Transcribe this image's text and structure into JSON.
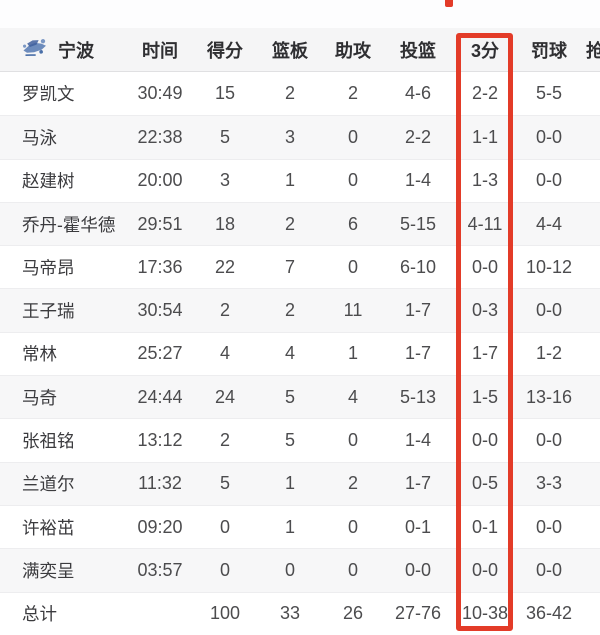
{
  "team": {
    "name": "宁波"
  },
  "header": {
    "columns": [
      "时间",
      "得分",
      "篮板",
      "助攻",
      "投篮",
      "3分",
      "罚球",
      "抢断"
    ]
  },
  "highlight": {
    "column_label": "3分",
    "box_color": "#e33b28"
  },
  "players": [
    {
      "name": "罗凯文",
      "time": "30:49",
      "pts": "15",
      "reb": "2",
      "ast": "2",
      "fg": "4-6",
      "tp": "2-2",
      "ft": "5-5"
    },
    {
      "name": "马泳",
      "time": "22:38",
      "pts": "5",
      "reb": "3",
      "ast": "0",
      "fg": "2-2",
      "tp": "1-1",
      "ft": "0-0"
    },
    {
      "name": "赵建树",
      "time": "20:00",
      "pts": "3",
      "reb": "1",
      "ast": "0",
      "fg": "1-4",
      "tp": "1-3",
      "ft": "0-0"
    },
    {
      "name": "乔丹-霍华德",
      "time": "29:51",
      "pts": "18",
      "reb": "2",
      "ast": "6",
      "fg": "5-15",
      "tp": "4-11",
      "ft": "4-4"
    },
    {
      "name": "马帝昂",
      "time": "17:36",
      "pts": "22",
      "reb": "7",
      "ast": "0",
      "fg": "6-10",
      "tp": "0-0",
      "ft": "10-12"
    },
    {
      "name": "王子瑞",
      "time": "30:54",
      "pts": "2",
      "reb": "2",
      "ast": "11",
      "fg": "1-7",
      "tp": "0-3",
      "ft": "0-0"
    },
    {
      "name": "常林",
      "time": "25:27",
      "pts": "4",
      "reb": "4",
      "ast": "1",
      "fg": "1-7",
      "tp": "1-7",
      "ft": "1-2"
    },
    {
      "name": "马奇",
      "time": "24:44",
      "pts": "24",
      "reb": "5",
      "ast": "4",
      "fg": "5-13",
      "tp": "1-5",
      "ft": "13-16"
    },
    {
      "name": "张祖铭",
      "time": "13:12",
      "pts": "2",
      "reb": "5",
      "ast": "0",
      "fg": "1-4",
      "tp": "0-0",
      "ft": "0-0"
    },
    {
      "name": "兰道尔",
      "time": "11:32",
      "pts": "5",
      "reb": "1",
      "ast": "2",
      "fg": "1-7",
      "tp": "0-5",
      "ft": "3-3"
    },
    {
      "name": "许裕茁",
      "time": "09:20",
      "pts": "0",
      "reb": "1",
      "ast": "0",
      "fg": "0-1",
      "tp": "0-1",
      "ft": "0-0"
    },
    {
      "name": "满奕呈",
      "time": "03:57",
      "pts": "0",
      "reb": "0",
      "ast": "0",
      "fg": "0-0",
      "tp": "0-0",
      "ft": "0-0"
    }
  ],
  "totals": {
    "name": "总计",
    "time": "",
    "pts": "100",
    "reb": "33",
    "ast": "26",
    "fg": "27-76",
    "tp": "10-38",
    "ft": "36-42"
  }
}
